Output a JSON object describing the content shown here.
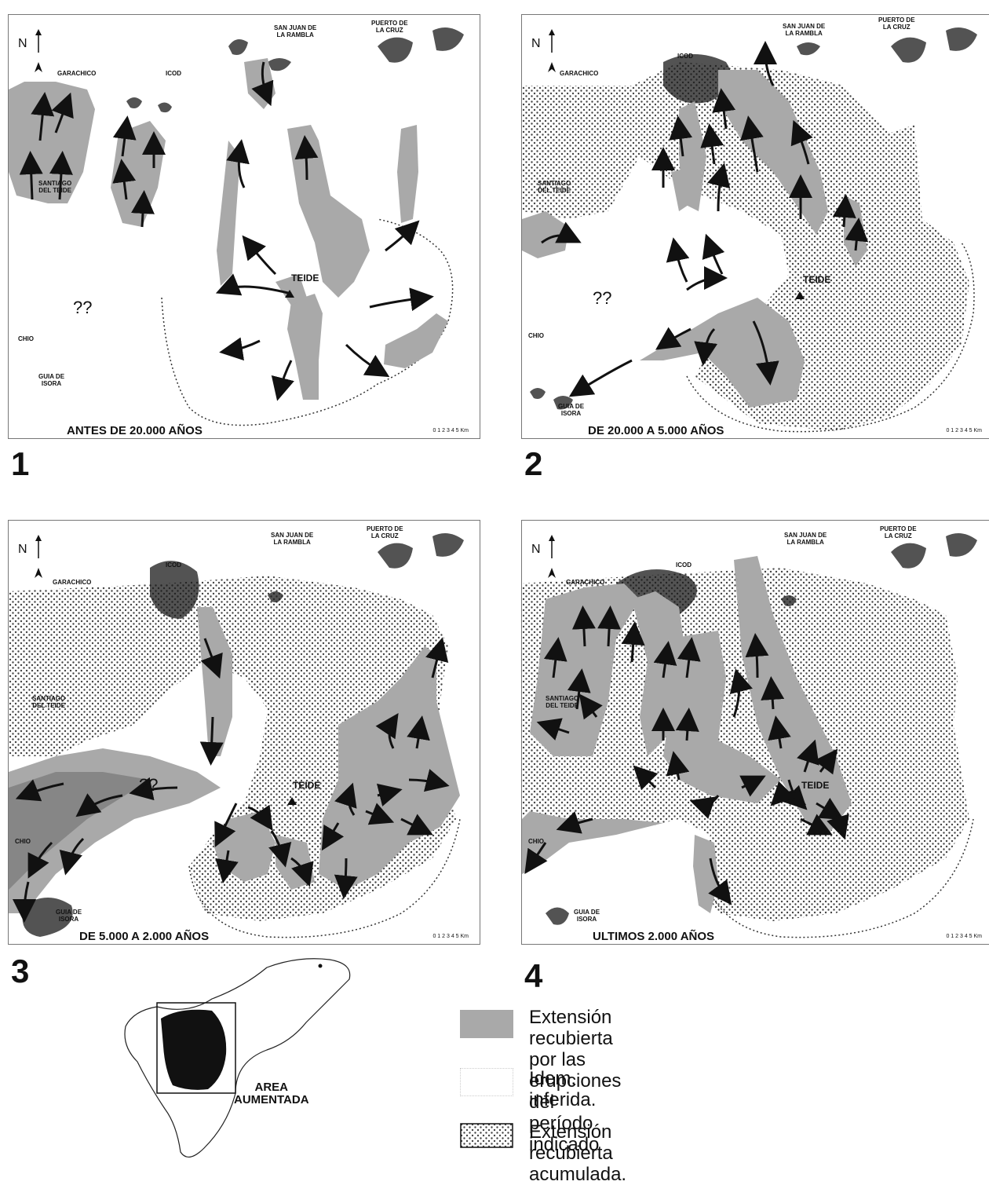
{
  "panels": [
    {
      "number": "1",
      "period": "ANTES DE 20.000 AÑOS",
      "unknown": "??",
      "north": "N",
      "teide": "TEIDE",
      "towns": {
        "garachico": "GARACHICO",
        "icod": "ICOD",
        "san_juan": "SAN JUAN DE\nLA RAMBLA",
        "puerto": "PUERTO DE\nLA CRUZ",
        "santiago": "SANTIAGO\nDEL TEIDE",
        "chio": "CHIO",
        "guia": "GUIA DE\nISORA"
      },
      "scale": "0  1  2  3  4  5 Km"
    },
    {
      "number": "2",
      "period": "DE 20.000 A 5.000 AÑOS",
      "unknown": "??",
      "north": "N",
      "teide": "TEIDE",
      "towns": {
        "garachico": "GARACHICO",
        "icod": "ICOD",
        "san_juan": "SAN JUAN DE\nLA RAMBLA",
        "puerto": "PUERTO DE\nLA CRUZ",
        "santiago": "SANTIAGO\nDEL TEIDE",
        "chio": "CHIO",
        "guia": "GUIA DE\nISORA"
      },
      "scale": "0  1  2  3  4  5 Km"
    },
    {
      "number": "3",
      "period": "DE 5.000 A 2.000 AÑOS",
      "unknown": "??",
      "north": "N",
      "teide": "TEIDE",
      "towns": {
        "garachico": "GARACHICO",
        "icod": "ICOD",
        "san_juan": "SAN JUAN DE\nLA RAMBLA",
        "puerto": "PUERTO DE\nLA CRUZ",
        "santiago": "SANTIAGO\nDEL TEIDE",
        "chio": "CHIO",
        "guia": "GUIA DE\nISORA"
      },
      "scale": "0  1  2  3  4  5 Km"
    },
    {
      "number": "4",
      "period": "ULTIMOS 2.000 AÑOS",
      "unknown": "",
      "north": "N",
      "teide": "TEIDE",
      "towns": {
        "garachico": "GARACHICO",
        "icod": "ICOD",
        "san_juan": "SAN JUAN DE\nLA RAMBLA",
        "puerto": "PUERTO DE\nLA CRUZ",
        "santiago": "SANTIAGO\nDEL TEIDE",
        "chio": "CHIO",
        "guia": "GUIA DE\nISORA"
      },
      "scale": "0  1  2  3  4  5 Km"
    }
  ],
  "inset": {
    "label": "AREA\nAUMENTADA"
  },
  "legend": [
    {
      "text": "Extensión recubierta por las erupciones\ndel período indicado",
      "swatch": "gray"
    },
    {
      "text": "Idem. inferida.",
      "swatch": "white"
    },
    {
      "text": "Extensión recubierta acumulada.",
      "swatch": "dotted"
    }
  ],
  "colors": {
    "flow": "#a9a9a9",
    "urban": "#1a1a1a",
    "dots": "#555555"
  }
}
